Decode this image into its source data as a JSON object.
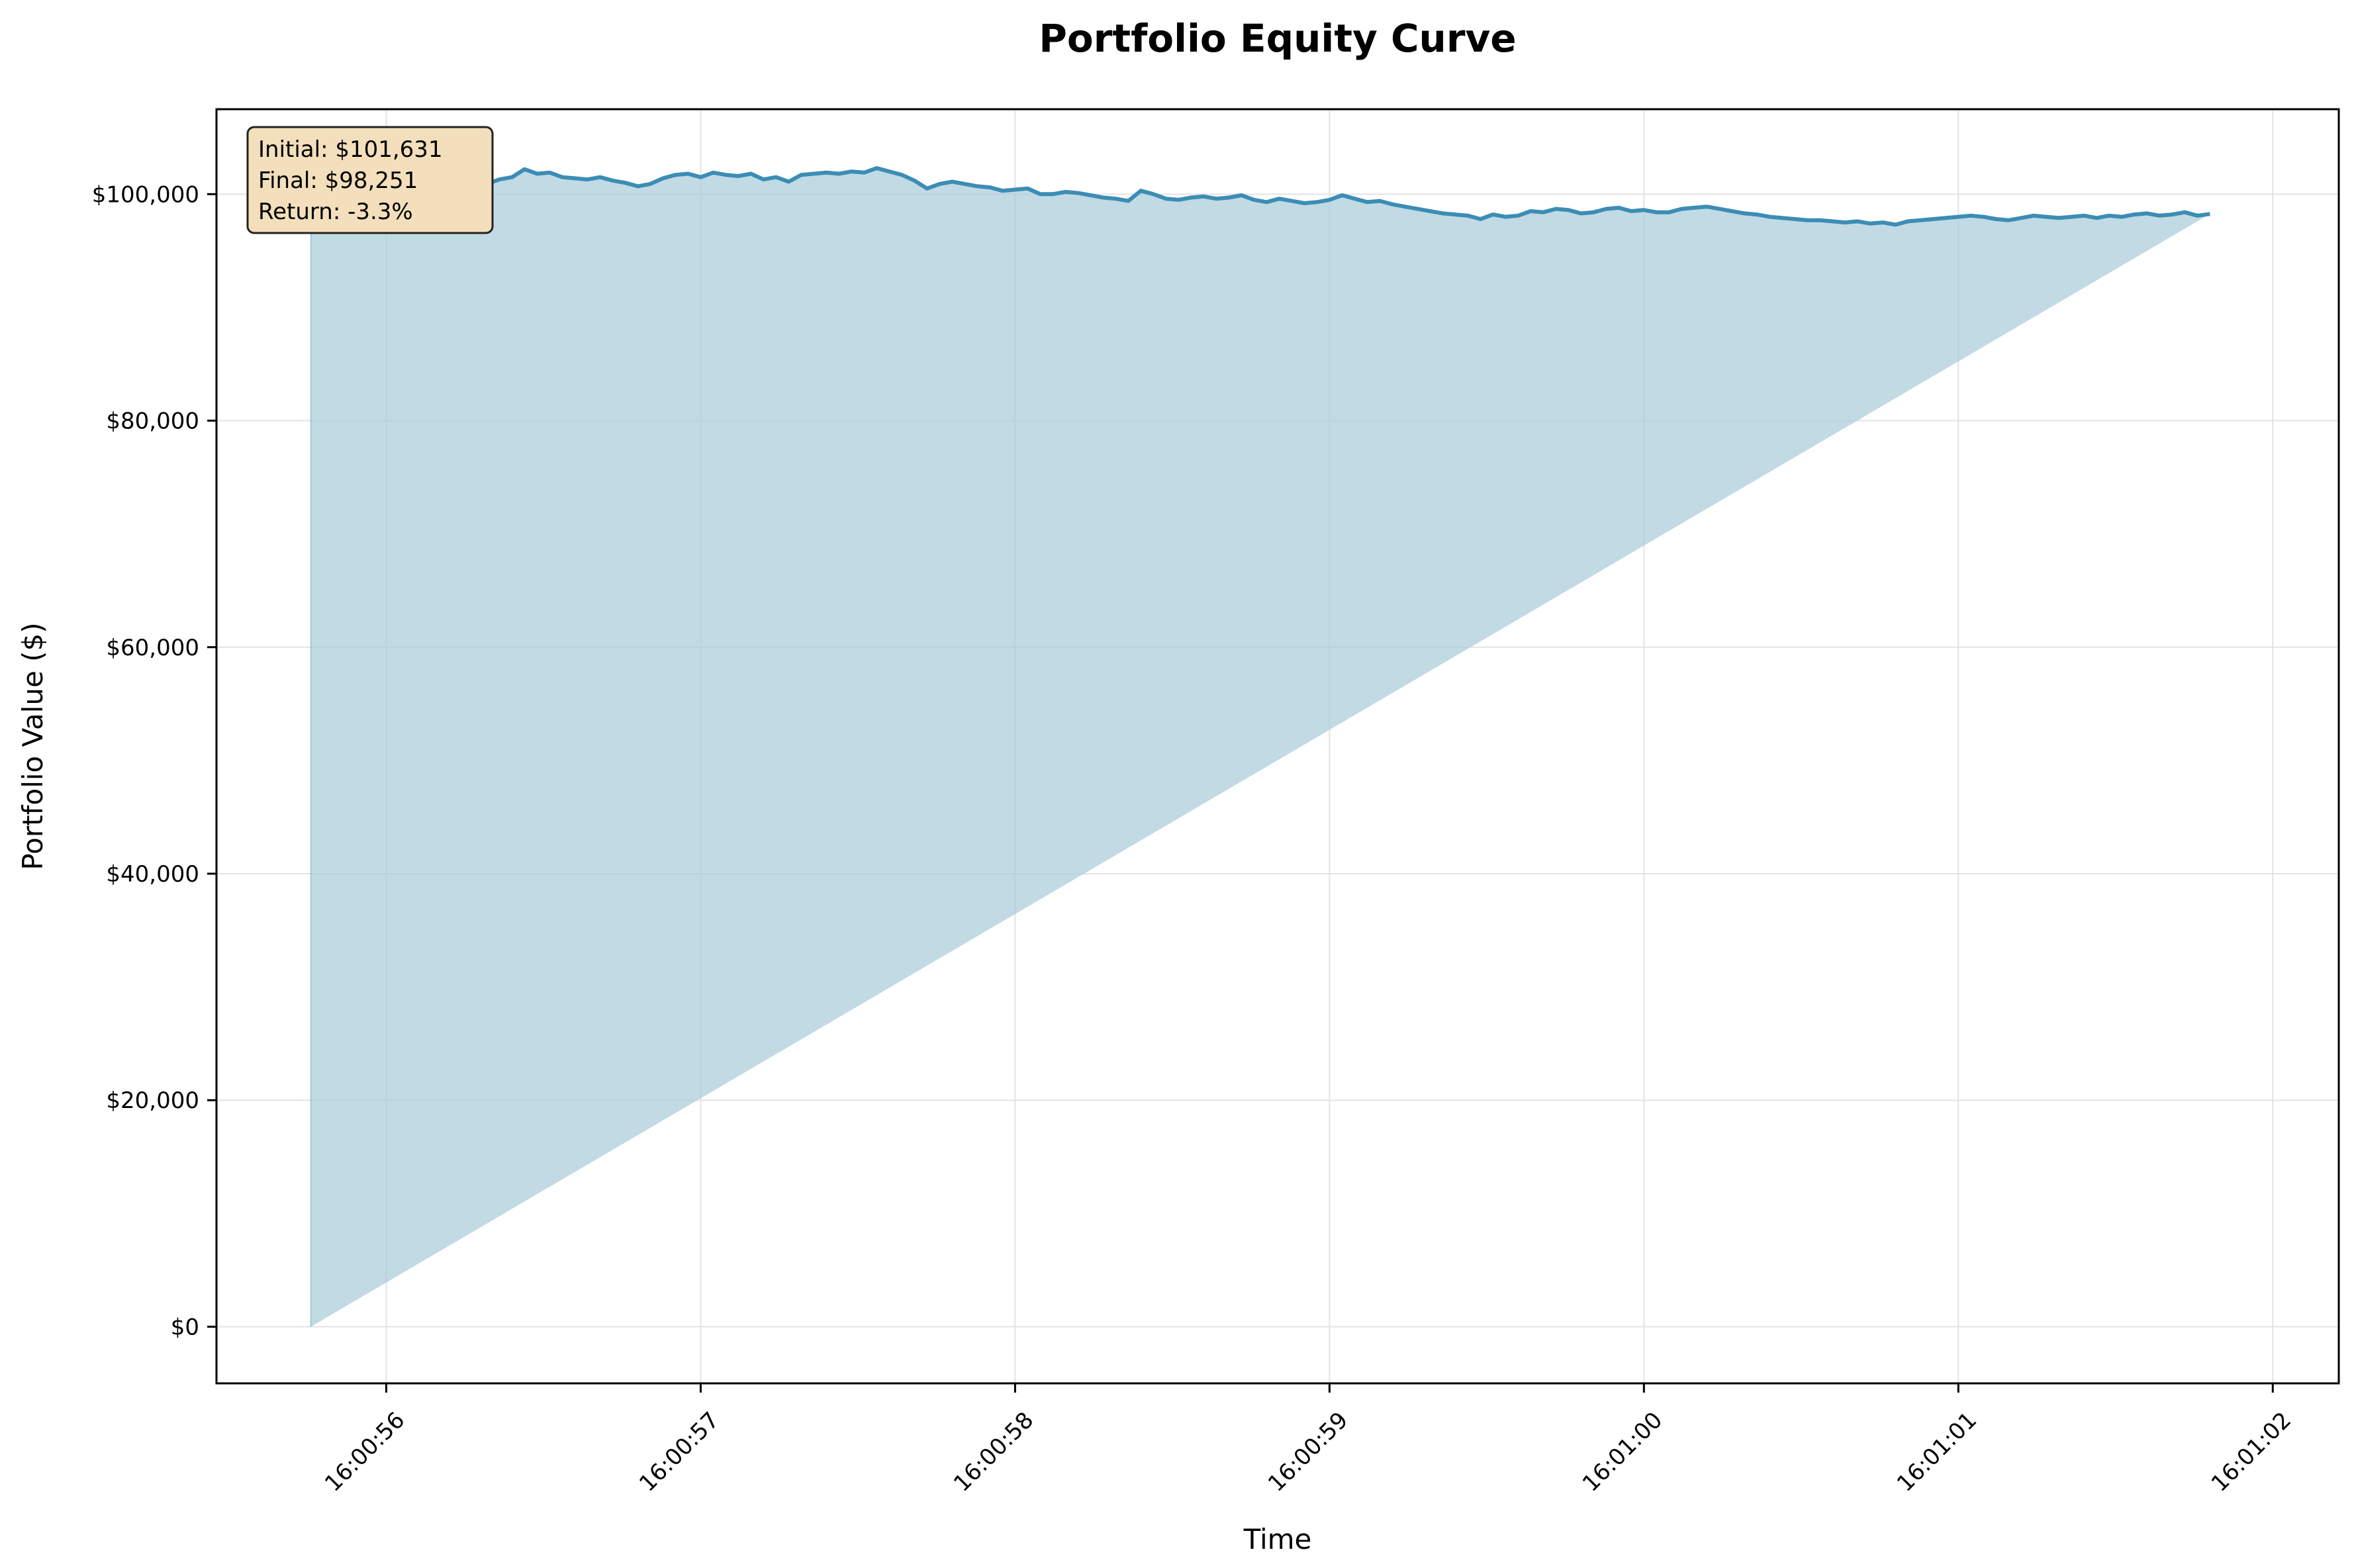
{
  "chart_data": {
    "type": "area",
    "title": "Portfolio Equity Curve",
    "xlabel": "Time",
    "ylabel": "Portfolio Value ($)",
    "grid": true,
    "x_range_seconds": [
      -0.54,
      6.21
    ],
    "ylim": [
      -5000,
      107500
    ],
    "x_ticks": [
      {
        "t": 0,
        "label": "16:00:56"
      },
      {
        "t": 1,
        "label": "16:00:57"
      },
      {
        "t": 2,
        "label": "16:00:58"
      },
      {
        "t": 3,
        "label": "16:00:59"
      },
      {
        "t": 4,
        "label": "16:01:00"
      },
      {
        "t": 5,
        "label": "16:01:01"
      },
      {
        "t": 6,
        "label": "16:01:02"
      }
    ],
    "y_ticks": [
      {
        "v": 0,
        "label": "$0"
      },
      {
        "v": 20000,
        "label": "$20,000"
      },
      {
        "v": 40000,
        "label": "$40,000"
      },
      {
        "v": 60000,
        "label": "$60,000"
      },
      {
        "v": 80000,
        "label": "$80,000"
      },
      {
        "v": 100000,
        "label": "$100,000"
      }
    ],
    "series": [
      {
        "name": "Portfolio Value",
        "x_seconds_from_16_00_56": [
          -0.24,
          -0.2,
          -0.16,
          -0.12,
          -0.08,
          -0.04,
          0.0,
          0.04,
          0.08,
          0.12,
          0.16,
          0.2,
          0.24,
          0.28,
          0.32,
          0.36,
          0.4,
          0.44,
          0.48,
          0.52,
          0.56,
          0.6,
          0.64,
          0.68,
          0.72,
          0.76,
          0.8,
          0.84,
          0.88,
          0.92,
          0.96,
          1.0,
          1.04,
          1.08,
          1.12,
          1.16,
          1.2,
          1.24,
          1.28,
          1.32,
          1.36,
          1.4,
          1.44,
          1.48,
          1.52,
          1.56,
          1.6,
          1.64,
          1.68,
          1.72,
          1.76,
          1.8,
          1.84,
          1.88,
          1.92,
          1.96,
          2.0,
          2.04,
          2.08,
          2.12,
          2.16,
          2.2,
          2.24,
          2.28,
          2.32,
          2.36,
          2.4,
          2.44,
          2.48,
          2.52,
          2.56,
          2.6,
          2.64,
          2.68,
          2.72,
          2.76,
          2.8,
          2.84,
          2.88,
          2.92,
          2.96,
          3.0,
          3.04,
          3.08,
          3.12,
          3.16,
          3.2,
          3.24,
          3.28,
          3.32,
          3.36,
          3.4,
          3.44,
          3.48,
          3.52,
          3.56,
          3.6,
          3.64,
          3.68,
          3.72,
          3.76,
          3.8,
          3.84,
          3.88,
          3.92,
          3.96,
          4.0,
          4.04,
          4.08,
          4.12,
          4.16,
          4.2,
          4.24,
          4.28,
          4.32,
          4.36,
          4.4,
          4.44,
          4.48,
          4.52,
          4.56,
          4.6,
          4.64,
          4.68,
          4.72,
          4.76,
          4.8,
          4.84,
          4.88,
          4.92,
          4.96,
          5.0,
          5.04,
          5.08,
          5.12,
          5.16,
          5.2,
          5.24,
          5.28,
          5.32,
          5.36,
          5.4,
          5.44,
          5.48,
          5.52,
          5.56,
          5.6,
          5.64,
          5.68,
          5.72,
          5.76,
          5.8,
          5.84,
          5.88
        ],
        "values": [
          101631,
          101800,
          101500,
          101900,
          101700,
          101400,
          101600,
          101300,
          101500,
          101200,
          101600,
          101900,
          101300,
          101000,
          100900,
          101300,
          101500,
          102200,
          101800,
          101900,
          101500,
          101400,
          101300,
          101500,
          101200,
          101000,
          100700,
          100900,
          101400,
          101700,
          101800,
          101500,
          101900,
          101700,
          101600,
          101800,
          101300,
          101500,
          101100,
          101700,
          101800,
          101900,
          101800,
          102000,
          101900,
          102300,
          102000,
          101700,
          101200,
          100500,
          100900,
          101100,
          100900,
          100700,
          100600,
          100300,
          100400,
          100500,
          100000,
          100000,
          100200,
          100100,
          99900,
          99700,
          99600,
          99400,
          100300,
          100000,
          99600,
          99500,
          99700,
          99800,
          99600,
          99700,
          99900,
          99500,
          99300,
          99600,
          99400,
          99200,
          99300,
          99500,
          99900,
          99600,
          99300,
          99400,
          99100,
          98900,
          98700,
          98500,
          98300,
          98200,
          98100,
          97800,
          98200,
          98000,
          98100,
          98500,
          98400,
          98700,
          98600,
          98300,
          98400,
          98700,
          98800,
          98500,
          98600,
          98400,
          98400,
          98700,
          98800,
          98900,
          98700,
          98500,
          98300,
          98200,
          98000,
          97900,
          97800,
          97700,
          97700,
          97600,
          97500,
          97600,
          97400,
          97500,
          97300,
          97600,
          97700,
          97800,
          97900,
          98000,
          98100,
          98000,
          97800,
          97700,
          97900,
          98100,
          98000,
          97900,
          98000,
          98100,
          97900,
          98100,
          98000,
          98200,
          98300,
          98100,
          98200,
          98400,
          98100,
          98251
        ]
      }
    ],
    "colors": {
      "line": "#3b8db5",
      "fill": "#a6cad9",
      "grid": "#e3e3e3",
      "box_fill": "#f3dfbb",
      "box_edge": "#222222"
    },
    "annotation": {
      "initial": "Initial: $101,631",
      "final": "Final: $98,251",
      "return": "Return: -3.3%"
    }
  }
}
